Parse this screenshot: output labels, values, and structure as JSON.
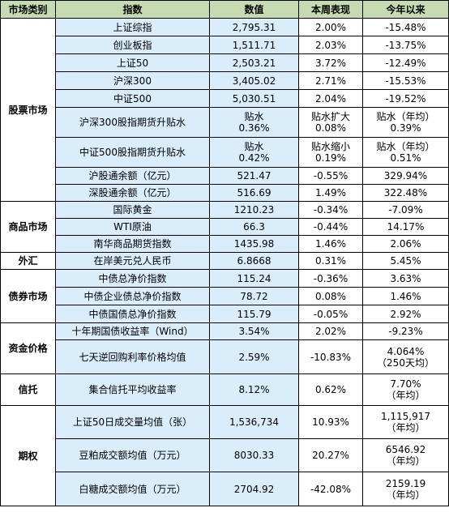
{
  "headers": [
    "市场类别",
    "指数",
    "数值",
    "本周表现",
    "今年以来"
  ],
  "rows": [
    {
      "cat": "股票市场",
      "ind": "上证综指",
      "val": "2,795.31",
      "wk": "2.00%",
      "ytd": "-15.48%"
    },
    {
      "ind": "创业板指",
      "val": "1,511.71",
      "wk": "2.03%",
      "ytd": "-13.75%"
    },
    {
      "ind": "上证50",
      "val": "2,503.21",
      "wk": "3.72%",
      "ytd": "-12.49%"
    },
    {
      "ind": "沪深300",
      "val": "3,405.02",
      "wk": "2.71%",
      "ytd": "-15.53%"
    },
    {
      "ind": "中证500",
      "val": "5,030.51",
      "wk": "2.04%",
      "ytd": "-19.52%"
    },
    {
      "ind": "沪深300股指期货升贴水",
      "val1": "贴水",
      "val2": "0.36%",
      "wk1": "贴水扩大",
      "wk2": "0.08%",
      "ytd1": "贴水（年均）",
      "ytd2": "0.39%"
    },
    {
      "ind": "中证500股指期货升贴水",
      "val1": "贴水",
      "val2": "0.42%",
      "wk1": "贴水缩小",
      "wk2": "0.19%",
      "ytd1": "贴水（年均）",
      "ytd2": "0.51%"
    },
    {
      "ind": "沪股通余额（亿元）",
      "val": "521.47",
      "wk": "-0.55%",
      "ytd": "329.94%"
    },
    {
      "ind": "深股通余额（亿元）",
      "val": "516.69",
      "wk": "1.49%",
      "ytd": "322.48%"
    },
    {
      "cat": "商品市场",
      "ind": "国际黄金",
      "val": "1210.23",
      "wk": "-0.34%",
      "ytd": "-7.09%"
    },
    {
      "ind": "WTI原油",
      "val": "66.3",
      "wk": "-0.44%",
      "ytd": "14.17%"
    },
    {
      "ind": "南华商品期货指数",
      "val": "1435.98",
      "wk": "1.46%",
      "ytd": "2.06%"
    },
    {
      "cat": "外汇",
      "ind": "在岸美元兑人民币",
      "val": "6.8668",
      "wk": "0.31%",
      "ytd": "5.45%"
    },
    {
      "cat": "债券市场",
      "ind": "中债总净价指数",
      "val": "115.24",
      "wk": "-0.36%",
      "ytd": "3.63%"
    },
    {
      "ind": "中债企业债总净价指数",
      "val": "78.72",
      "wk": "0.08%",
      "ytd": "1.46%"
    },
    {
      "ind": "中债国债总净价指数",
      "val": "115.79",
      "wk": "-0.05%",
      "ytd": "2.92%"
    },
    {
      "cat": "资金价格",
      "ind": "十年期国债收益率（Wind）",
      "val": "3.54%",
      "wk": "2.02%",
      "ytd": "-9.23%"
    },
    {
      "ind": "七天逆回购利率价格均值",
      "val": "2.59%",
      "wk": "-10.83%",
      "ytd1": "4.064%",
      "ytd2": "（250天均）"
    },
    {
      "cat": "信托",
      "ind": "集合信托平均收益率",
      "val": "8.12%",
      "wk": "0.62%",
      "ytd1": "7.70%",
      "ytd2": "（年均）"
    },
    {
      "cat": "期权",
      "ind": "上证50日成交量均值（张）",
      "val": "1,536,734",
      "wk": "10.93%",
      "ytd1": "1,115,917",
      "ytd2": "（年均）"
    },
    {
      "ind": "豆粕成交额均值（万元）",
      "val": "8030.33",
      "wk": "20.27%",
      "ytd1": "6546.92",
      "ytd2": "（年均）"
    },
    {
      "ind": "白糖成交额均值（万元）",
      "val": "2704.92",
      "wk": "-42.08%",
      "ytd1": "2159.19",
      "ytd2": "（年均）"
    }
  ]
}
